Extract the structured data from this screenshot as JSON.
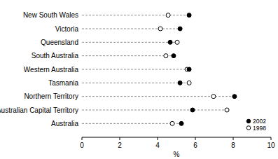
{
  "chart_data": {
    "type": "dot",
    "orientation": "horizontal",
    "categories": [
      "New South Wales",
      "Victoria",
      "Queensland",
      "South Australia",
      "Western Australia",
      "Tasmania",
      "Northern Territory",
      "Australian Capital Territory",
      "Australia"
    ],
    "series": [
      {
        "name": "2002",
        "color": "#000000",
        "marker": "circle",
        "values": [
          5.67,
          5.19,
          4.67,
          4.85,
          5.67,
          5.19,
          8.07,
          5.85,
          5.26
        ]
      },
      {
        "name": "1998",
        "color": "#000000",
        "marker": "circle-open",
        "values": [
          4.56,
          4.15,
          5.04,
          4.44,
          5.56,
          5.67,
          6.96,
          7.67,
          4.78
        ]
      }
    ],
    "xlabel": "%",
    "xlim": [
      0,
      10
    ],
    "xticks": [
      0,
      2,
      4,
      6,
      8,
      10
    ],
    "grid": false,
    "legend": "lower right"
  }
}
